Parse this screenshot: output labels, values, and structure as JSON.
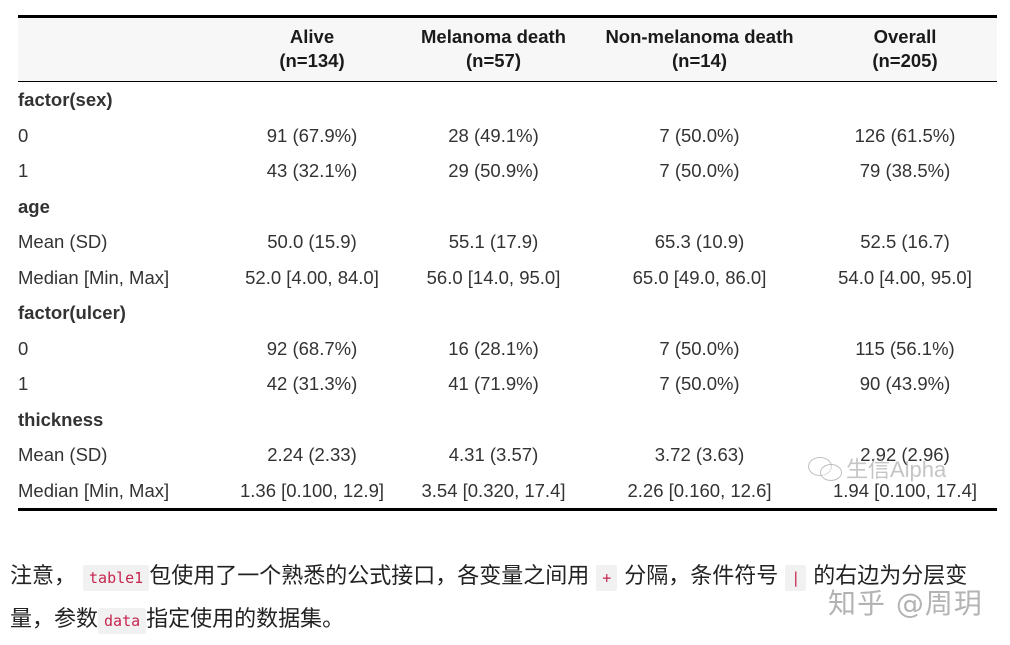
{
  "table": {
    "headers": [
      {
        "title": "",
        "n": ""
      },
      {
        "title": "Alive",
        "n": "(n=134)"
      },
      {
        "title": "Melanoma death",
        "n": "(n=57)"
      },
      {
        "title": "Non-melanoma death",
        "n": "(n=14)"
      },
      {
        "title": "Overall",
        "n": "(n=205)"
      }
    ],
    "groups": [
      {
        "label": "factor(sex)",
        "rows": [
          {
            "label": "0",
            "values": [
              "91 (67.9%)",
              "28 (49.1%)",
              "7 (50.0%)",
              "126 (61.5%)"
            ]
          },
          {
            "label": "1",
            "values": [
              "43 (32.1%)",
              "29 (50.9%)",
              "7 (50.0%)",
              "79 (38.5%)"
            ]
          }
        ]
      },
      {
        "label": "age",
        "rows": [
          {
            "label": "Mean (SD)",
            "values": [
              "50.0 (15.9)",
              "55.1 (17.9)",
              "65.3 (10.9)",
              "52.5 (16.7)"
            ]
          },
          {
            "label": "Median [Min, Max]",
            "values": [
              "52.0 [4.00, 84.0]",
              "56.0 [14.0, 95.0]",
              "65.0 [49.0, 86.0]",
              "54.0 [4.00, 95.0]"
            ]
          }
        ]
      },
      {
        "label": "factor(ulcer)",
        "rows": [
          {
            "label": "0",
            "values": [
              "92 (68.7%)",
              "16 (28.1%)",
              "7 (50.0%)",
              "115 (56.1%)"
            ]
          },
          {
            "label": "1",
            "values": [
              "42 (31.3%)",
              "41 (71.9%)",
              "7 (50.0%)",
              "90 (43.9%)"
            ]
          }
        ]
      },
      {
        "label": "thickness",
        "rows": [
          {
            "label": "Mean (SD)",
            "values": [
              "2.24 (2.33)",
              "4.31 (3.57)",
              "3.72 (3.63)",
              "2.92 (2.96)"
            ]
          },
          {
            "label": "Median [Min, Max]",
            "values": [
              "1.36 [0.100, 12.9]",
              "3.54 [0.320, 17.4]",
              "2.26 [0.160, 12.6]",
              "1.94 [0.100, 17.4]"
            ]
          }
        ]
      }
    ]
  },
  "watermark_table": "生信Alpha",
  "paragraph": {
    "p1": "注意，",
    "code1": "table1",
    "p2": "包使用了一个熟悉的公式接口，各变量之间用",
    "code2": "+",
    "p3": "分隔，条件符号",
    "code3": "|",
    "p4": "的右边为分层变量，参数",
    "code4": "data",
    "p5": "指定使用的数据集。"
  },
  "watermark_page": "知乎 @周玥",
  "colors": {
    "code_text": "#c7254e",
    "code_bg": "#f1f1f1",
    "header_bg": "#f7f7f7",
    "rule": "#000000"
  }
}
